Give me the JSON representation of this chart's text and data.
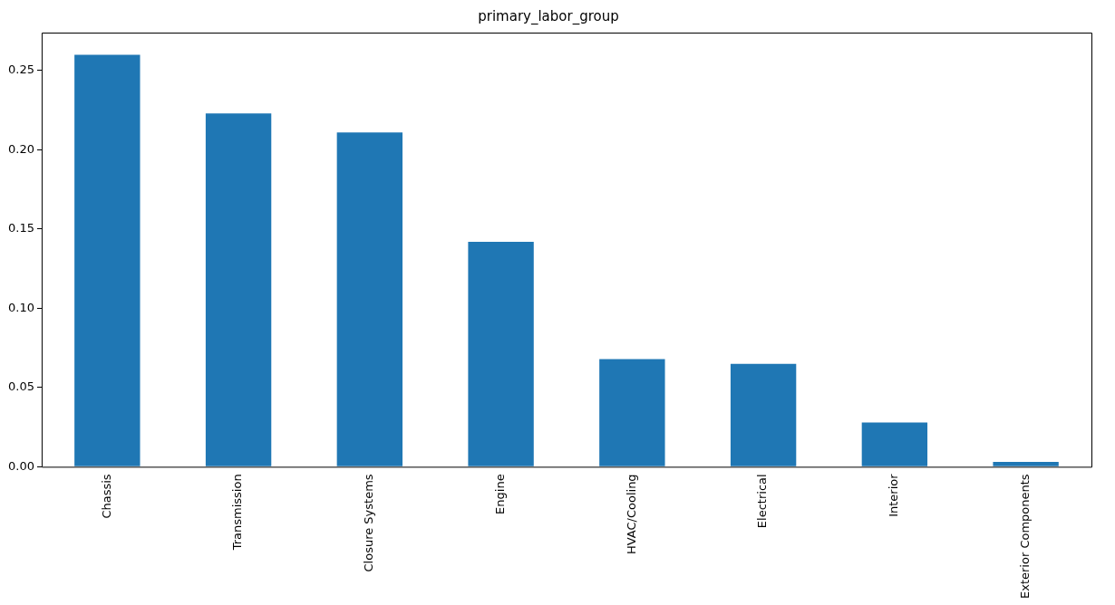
{
  "chart_data": {
    "type": "bar",
    "title": "primary_labor_group",
    "categories": [
      "Chassis",
      "Transmission",
      "Closure Systems",
      "Engine",
      "HVAC/Cooling",
      "Electrical",
      "Interior",
      "Exterior Components"
    ],
    "values": [
      0.26,
      0.223,
      0.211,
      0.142,
      0.068,
      0.065,
      0.028,
      0.003
    ],
    "color": "#1f77b4",
    "ylim": [
      0,
      0.274
    ],
    "yticks": [
      {
        "value": 0,
        "label": "0.00"
      },
      {
        "value": 0.05,
        "label": "0.05"
      },
      {
        "value": 0.1,
        "label": "0.10"
      },
      {
        "value": 0.15,
        "label": "0.15"
      },
      {
        "value": 0.2,
        "label": "0.20"
      },
      {
        "value": 0.25,
        "label": "0.25"
      }
    ],
    "grid": false,
    "legend": false
  }
}
